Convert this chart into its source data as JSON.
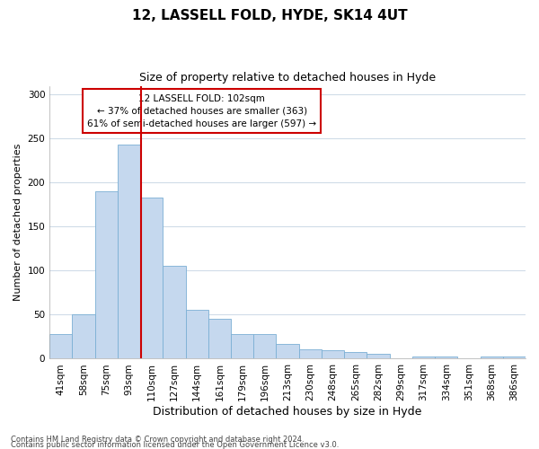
{
  "title1": "12, LASSELL FOLD, HYDE, SK14 4UT",
  "title2": "Size of property relative to detached houses in Hyde",
  "xlabel": "Distribution of detached houses by size in Hyde",
  "ylabel": "Number of detached properties",
  "categories": [
    "41sqm",
    "58sqm",
    "75sqm",
    "93sqm",
    "110sqm",
    "127sqm",
    "144sqm",
    "161sqm",
    "179sqm",
    "196sqm",
    "213sqm",
    "230sqm",
    "248sqm",
    "265sqm",
    "282sqm",
    "299sqm",
    "317sqm",
    "334sqm",
    "351sqm",
    "368sqm",
    "386sqm"
  ],
  "values": [
    28,
    50,
    190,
    243,
    183,
    106,
    56,
    45,
    28,
    28,
    17,
    11,
    10,
    8,
    6,
    0,
    2,
    2,
    0,
    2,
    2
  ],
  "bar_color": "#c5d8ee",
  "bar_edge_color": "#7bafd4",
  "ylim": [
    0,
    310
  ],
  "yticks": [
    0,
    50,
    100,
    150,
    200,
    250,
    300
  ],
  "annotation_text": "12 LASSELL FOLD: 102sqm\n← 37% of detached houses are smaller (363)\n61% of semi-detached houses are larger (597) →",
  "annotation_box_color": "#ffffff",
  "annotation_box_edge": "#cc0000",
  "footer1": "Contains HM Land Registry data © Crown copyright and database right 2024.",
  "footer2": "Contains public sector information licensed under the Open Government Licence v3.0.",
  "background_color": "#ffffff",
  "grid_color": "#d0dce8",
  "title1_fontsize": 11,
  "title2_fontsize": 9,
  "xlabel_fontsize": 9,
  "ylabel_fontsize": 8,
  "tick_fontsize": 7.5,
  "ann_fontsize": 7.5,
  "footer_fontsize": 6
}
